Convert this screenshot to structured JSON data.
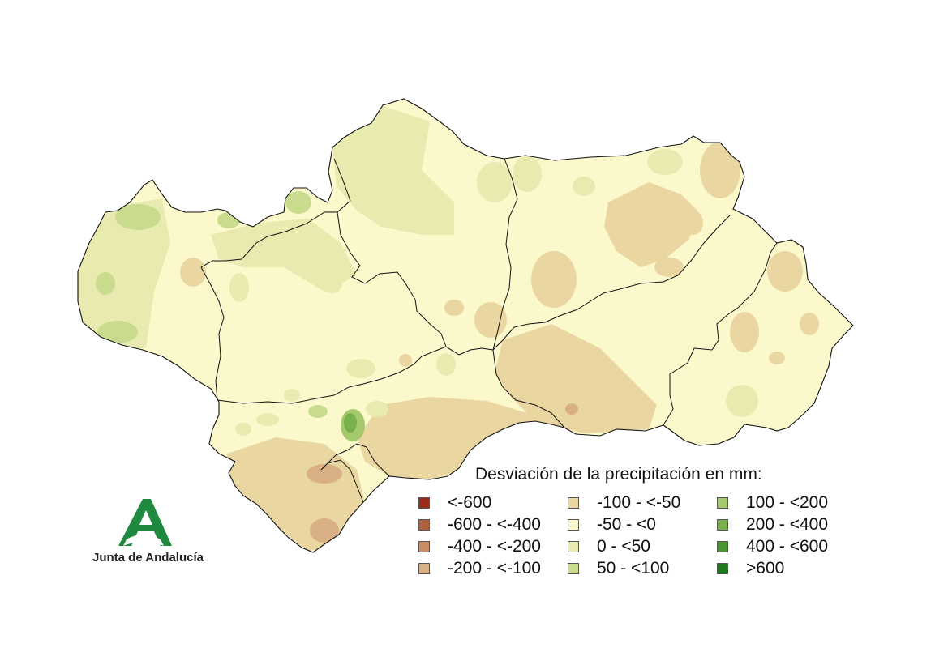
{
  "legend": {
    "title": "Desviación de la precipitación en mm:",
    "items": [
      {
        "label": "<-600",
        "color": "#9a2a1c"
      },
      {
        "label": "-600 - <-400",
        "color": "#b0603a"
      },
      {
        "label": "-400 - <-200",
        "color": "#c98b62"
      },
      {
        "label": "-200 - <-100",
        "color": "#d9b086"
      },
      {
        "label": "-100 - <-50",
        "color": "#ead6a1"
      },
      {
        "label": "-50 - <0",
        "color": "#fbf8cc"
      },
      {
        "label": "0 - <50",
        "color": "#e9eab0"
      },
      {
        "label": "50 - <100",
        "color": "#c9dc8e"
      },
      {
        "label": "100 - <200",
        "color": "#a4c96c"
      },
      {
        "label": "200 - <400",
        "color": "#78b04a"
      },
      {
        "label": "400 - <600",
        "color": "#4a962f"
      },
      {
        "label": ">600",
        "color": "#1f7a1f"
      }
    ]
  },
  "logo": {
    "text": "Junta de Andalucía",
    "color": "#1f8a3f"
  }
}
